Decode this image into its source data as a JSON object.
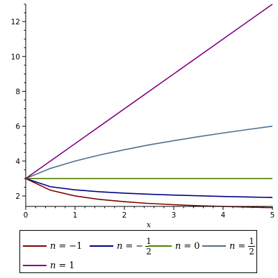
{
  "chart_data": {
    "type": "line",
    "title": "",
    "xlabel": "x",
    "ylabel": "",
    "xlim": [
      0,
      5
    ],
    "ylim": [
      1.4,
      13
    ],
    "x_ticks": [
      0,
      1,
      2,
      3,
      4,
      5
    ],
    "y_ticks": [
      2,
      4,
      6,
      8,
      10,
      12
    ],
    "grid": false,
    "legend_position": "bottom",
    "series": [
      {
        "name": "n = −1",
        "color": "#800000",
        "x": [
          0,
          0.5,
          1,
          1.5,
          2,
          2.5,
          3,
          3.5,
          4,
          4.5,
          5
        ],
        "y": [
          3,
          2.33,
          2,
          1.8,
          1.67,
          1.57,
          1.5,
          1.44,
          1.4,
          1.36,
          1.33
        ]
      },
      {
        "name": "n = −1/2",
        "color": "#000080",
        "x": [
          0,
          0.5,
          1,
          1.5,
          2,
          2.5,
          3,
          3.5,
          4,
          4.5,
          5
        ],
        "y": [
          3,
          2.53,
          2.35,
          2.24,
          2.16,
          2.1,
          2.05,
          2.01,
          1.97,
          1.94,
          1.91
        ]
      },
      {
        "name": "n = 0",
        "color": "#4f7f00",
        "x": [
          0,
          5
        ],
        "y": [
          3,
          3
        ]
      },
      {
        "name": "n = 1/2",
        "color": "#4e6e8e",
        "x": [
          0,
          0.5,
          1,
          1.5,
          2,
          2.5,
          3,
          3.5,
          4,
          4.5,
          5
        ],
        "y": [
          3,
          3.58,
          4,
          4.35,
          4.65,
          4.93,
          5.17,
          5.4,
          5.61,
          5.81,
          6
        ]
      },
      {
        "name": "n = 1",
        "color": "#800080",
        "x": [
          0,
          5
        ],
        "y": [
          3,
          13
        ]
      }
    ]
  },
  "legend": {
    "items": [
      {
        "var": "n",
        "eq": "=",
        "value": "−1"
      },
      {
        "var": "n",
        "eq": "=",
        "value": "−",
        "frac_num": "1",
        "frac_den": "2"
      },
      {
        "var": "n",
        "eq": "=",
        "value": "0"
      },
      {
        "var": "n",
        "eq": "=",
        "value": "",
        "frac_num": "1",
        "frac_den": "2"
      },
      {
        "var": "n",
        "eq": "=",
        "value": "1"
      }
    ]
  }
}
